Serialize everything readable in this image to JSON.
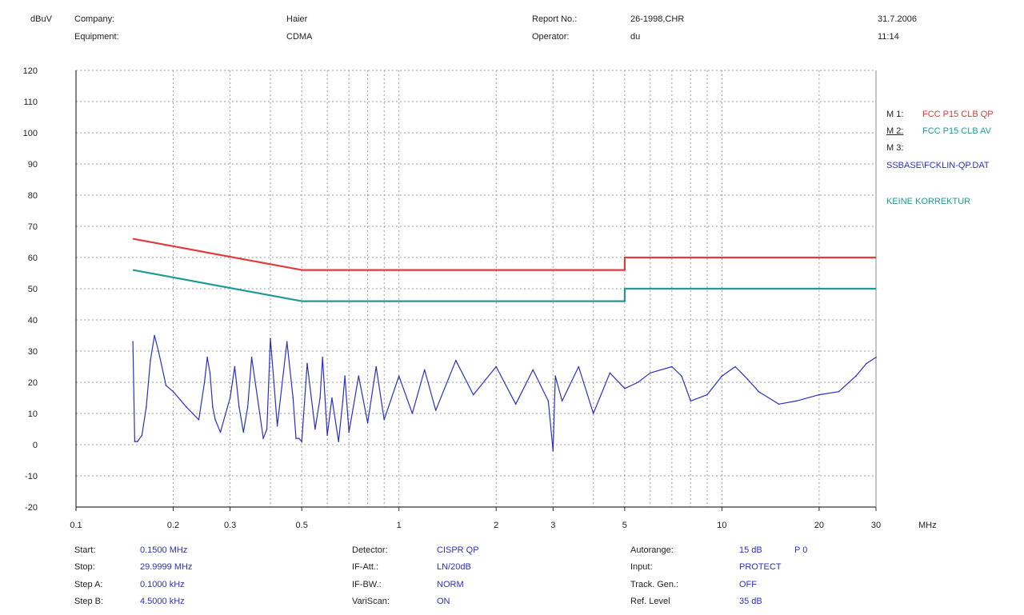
{
  "header": {
    "unit": "dBuV",
    "company_label": "Company:",
    "company": "Haier",
    "equipment_label": "Equipment:",
    "equipment": "CDMA",
    "report_label": "Report No.:",
    "report": "26-1998,CHR",
    "operator_label": "Operator:",
    "operator": "du",
    "date": "31.7.2006",
    "time": "11:14"
  },
  "legend": {
    "m1_label": "M 1:",
    "m1_value": "FCC P15 CLB QP",
    "m2_label": "M 2:",
    "m2_value": "FCC P15 CLB AV",
    "m3_label": "M 3:",
    "file": "SSBASE\\FCKLIN-QP.DAT",
    "correction": "KEINE KORREKTUR"
  },
  "settings": {
    "start_label": "Start:",
    "start": "0.1500 MHz",
    "stop_label": "Stop:",
    "stop": "29.9999 MHz",
    "stepa_label": "Step A:",
    "stepa": "0.1000 kHz",
    "stepb_label": "Step B:",
    "stepb": "4.5000 kHz",
    "detector_label": "Detector:",
    "detector": "CISPR QP",
    "ifatt_label": "IF-Att.:",
    "ifatt": "LN/20dB",
    "ifbw_label": "IF-BW.:",
    "ifbw": "NORM",
    "varscan_label": "VariScan:",
    "varscan": "ON",
    "autorange_label": "Autorange:",
    "autorange": "15 dB",
    "autorange_p": "P 0",
    "input_label": "Input:",
    "input": "PROTECT",
    "trackgen_label": "Track. Gen.:",
    "trackgen": "OFF",
    "reflevel_label": "Ref. Level",
    "reflevel": "35 dB"
  },
  "colors": {
    "qp_limit": "#e03c3c",
    "av_limit": "#1f9a96",
    "measurement": "#2b2fc4",
    "grid": "#9a9a9a"
  },
  "chart_data": {
    "type": "line",
    "x_scale": "log",
    "xlim": [
      0.1,
      30
    ],
    "ylim": [
      -20,
      120
    ],
    "xlabel": "MHz",
    "ylabel": "dBuV",
    "x_ticks": [
      0.1,
      0.2,
      0.3,
      0.5,
      1,
      2,
      3,
      5,
      10,
      20,
      30
    ],
    "x_tick_labels": [
      "0.1",
      "0.2",
      "0.3",
      "0.5",
      "1",
      "2",
      "3",
      "5",
      "10",
      "20",
      "30"
    ],
    "y_ticks": [
      -20,
      -10,
      0,
      10,
      20,
      30,
      40,
      50,
      60,
      70,
      80,
      90,
      100,
      110,
      120
    ],
    "y_tick_labels": [
      "-20",
      "-10",
      "0",
      "10",
      "20",
      "30",
      "40",
      "50",
      "60",
      "70",
      "80",
      "90",
      "100",
      "110",
      "120"
    ],
    "grid": true,
    "series": [
      {
        "name": "FCC P15 CLB QP",
        "color": "#e03c3c",
        "x": [
          0.15,
          0.5,
          5,
          5,
          30
        ],
        "y": [
          66,
          56,
          56,
          60,
          60
        ]
      },
      {
        "name": "FCC P15 CLB AV",
        "color": "#1f9a96",
        "x": [
          0.15,
          0.5,
          5,
          5,
          30
        ],
        "y": [
          56,
          46,
          46,
          50,
          50
        ]
      },
      {
        "name": "",
        "color": "#2b2fc4",
        "x": [
          0.15,
          0.152,
          0.155,
          0.16,
          0.165,
          0.17,
          0.175,
          0.18,
          0.19,
          0.2,
          0.22,
          0.24,
          0.25,
          0.255,
          0.26,
          0.265,
          0.27,
          0.28,
          0.3,
          0.31,
          0.32,
          0.33,
          0.34,
          0.35,
          0.38,
          0.39,
          0.4,
          0.41,
          0.42,
          0.45,
          0.47,
          0.48,
          0.49,
          0.5,
          0.52,
          0.55,
          0.57,
          0.58,
          0.6,
          0.62,
          0.65,
          0.67,
          0.68,
          0.7,
          0.75,
          0.8,
          0.85,
          0.9,
          1.0,
          1.1,
          1.2,
          1.3,
          1.5,
          1.7,
          2.0,
          2.3,
          2.6,
          2.9,
          3.0,
          3.05,
          3.2,
          3.6,
          4.0,
          4.5,
          5.0,
          5.5,
          6.0,
          7.0,
          7.5,
          8.0,
          9.0,
          10.0,
          11.0,
          12.0,
          13.0,
          15.0,
          17.0,
          20.0,
          23.0,
          26.0,
          28.0,
          30.0
        ],
        "y": [
          33,
          1,
          1,
          3,
          12,
          27,
          35,
          30,
          19,
          17,
          12,
          8,
          20,
          28,
          23,
          12,
          8,
          4,
          15,
          25,
          12,
          4,
          12,
          28,
          2,
          5,
          34,
          20,
          6,
          33,
          15,
          2,
          2,
          1,
          26,
          5,
          15,
          28,
          3,
          15,
          1,
          14,
          22,
          4,
          22,
          7,
          25,
          8,
          22,
          10,
          24,
          11,
          27,
          16,
          25,
          13,
          24,
          14,
          -2,
          22,
          14,
          25,
          10,
          23,
          18,
          20,
          23,
          25,
          22,
          14,
          16,
          22,
          25,
          21,
          17,
          13,
          14,
          16,
          17,
          22,
          26,
          28
        ]
      }
    ]
  }
}
